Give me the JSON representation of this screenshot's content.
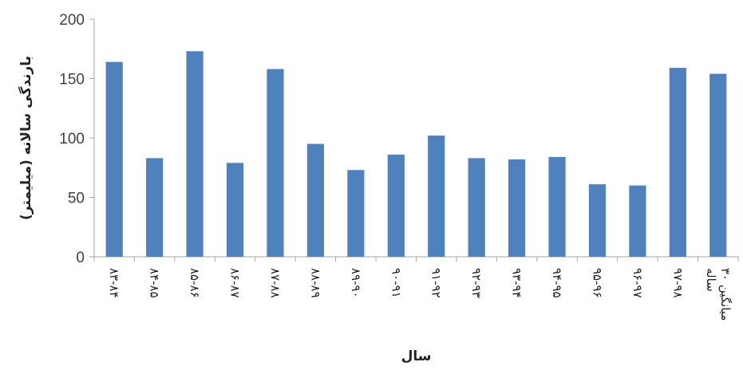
{
  "chart_data": {
    "type": "bar",
    "categories": [
      "۸۳-۸۴",
      "۸۴-۸۵",
      "۸۵-۸۶",
      "۸۶-۸۷",
      "۸۷-۸۸",
      "۸۸-۸۹",
      "۸۹-۹۰",
      "۹۰-۹۱",
      "۹۱-۹۲",
      "۹۲-۹۳",
      "۹۳-۹۴",
      "۹۴-۹۵",
      "۹۵-۹۶",
      "۹۶-۹۷",
      "۹۷-۹۸",
      "میانگین ۳۰ ساله"
    ],
    "values": [
      164,
      83,
      173,
      79,
      158,
      95,
      73,
      86,
      102,
      83,
      82,
      84,
      61,
      60,
      159,
      154
    ],
    "xlabel": "سال",
    "ylabel": "بارندگی سالانه (میلیمتر)",
    "ylim": [
      0,
      200
    ],
    "yticks": [
      0,
      50,
      100,
      150,
      200
    ],
    "grid": false,
    "legend": "none",
    "bar_color": "#4f81bd",
    "axis_color": "#a6a6a6"
  }
}
